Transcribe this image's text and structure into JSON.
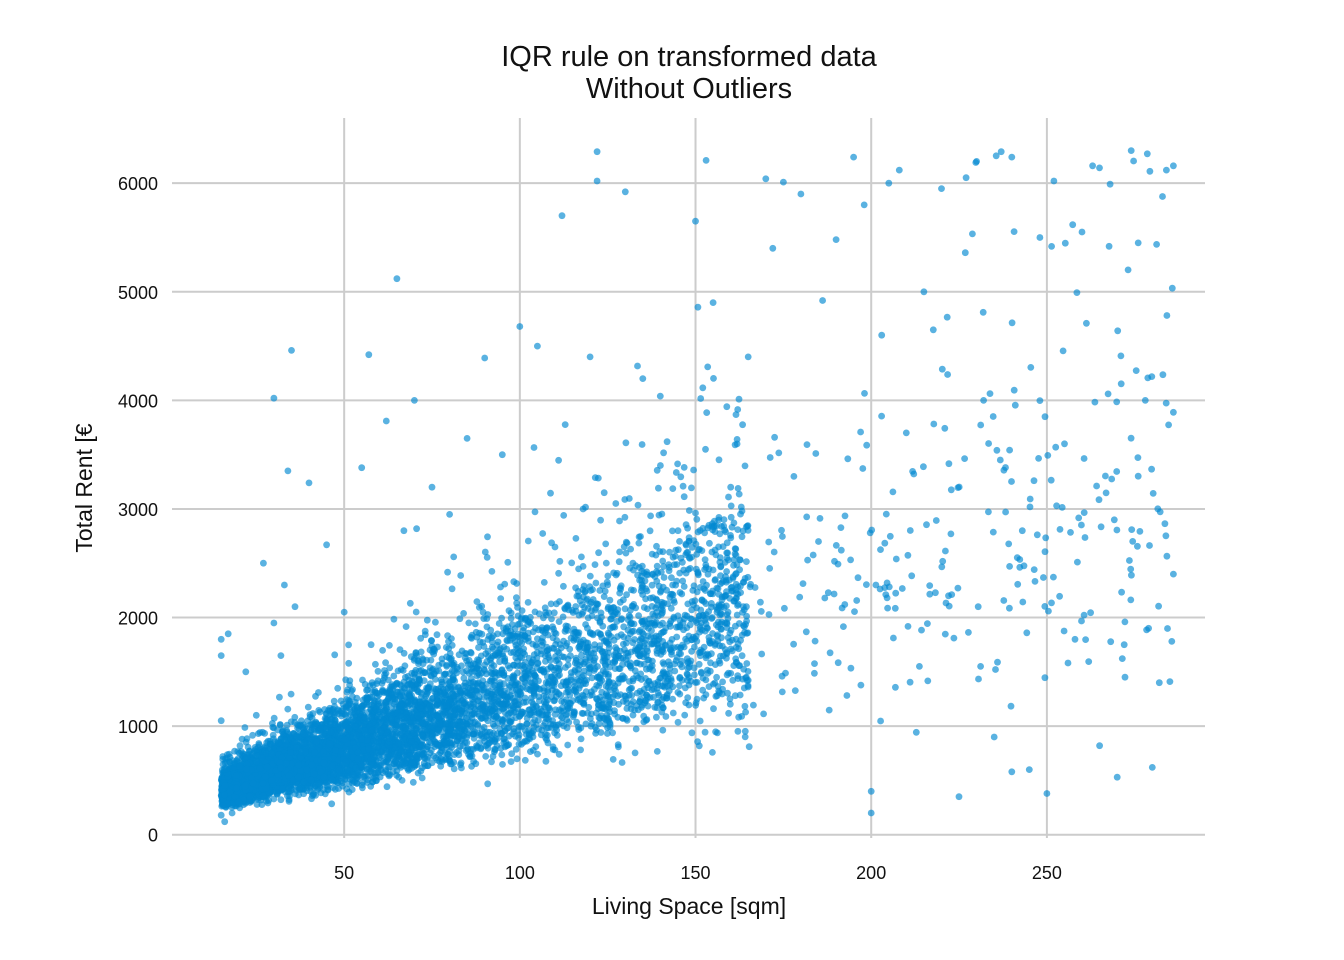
{
  "chart_data": {
    "type": "scatter",
    "title": "IQR rule on transformed data",
    "subtitle": "Without Outliers",
    "xlabel": "Living Space [sqm]",
    "ylabel": "Total Rent [€",
    "xlim": [
      1,
      295
    ],
    "ylim": [
      -30,
      6600
    ],
    "xticks": [
      50,
      100,
      150,
      200,
      250
    ],
    "yticks": [
      0,
      1000,
      2000,
      3000,
      4000,
      5000,
      6000
    ],
    "grid": true,
    "legend": "none",
    "marker_color": "#0288d1",
    "marker_opacity": 0.65,
    "series": [
      {
        "points": [
          [
            15,
            180
          ],
          [
            15,
            1050
          ],
          [
            15,
            1650
          ],
          [
            15,
            1800
          ],
          [
            16,
            120
          ],
          [
            17,
            1850
          ],
          [
            20,
            300
          ],
          [
            22,
            1500
          ],
          [
            25,
            1100
          ],
          [
            27,
            2500
          ],
          [
            30,
            1950
          ],
          [
            30,
            4020
          ],
          [
            32,
            1650
          ],
          [
            33,
            2300
          ],
          [
            34,
            3350
          ],
          [
            35,
            4460
          ],
          [
            36,
            2100
          ],
          [
            40,
            3240
          ],
          [
            45,
            2670
          ],
          [
            50,
            2050
          ],
          [
            55,
            3380
          ],
          [
            57,
            4420
          ],
          [
            62,
            3810
          ],
          [
            65,
            5120
          ],
          [
            67,
            2800
          ],
          [
            70,
            4000
          ],
          [
            75,
            3200
          ],
          [
            80,
            2950
          ],
          [
            85,
            3650
          ],
          [
            90,
            4390
          ],
          [
            95,
            3500
          ],
          [
            100,
            4680
          ],
          [
            105,
            4500
          ],
          [
            110,
            2650
          ],
          [
            112,
            5700
          ],
          [
            118,
            3000
          ],
          [
            120,
            4400
          ],
          [
            122,
            6020
          ],
          [
            122,
            6290
          ],
          [
            124,
            3150
          ],
          [
            130,
            5920
          ],
          [
            135,
            4200
          ],
          [
            140,
            3400
          ],
          [
            145,
            2800
          ],
          [
            150,
            5650
          ],
          [
            153,
            6210
          ],
          [
            155,
            4900
          ],
          [
            160,
            3200
          ],
          [
            165,
            4400
          ],
          [
            170,
            6040
          ],
          [
            172,
            5400
          ],
          [
            175,
            6010
          ],
          [
            178,
            3300
          ],
          [
            180,
            5900
          ],
          [
            185,
            2700
          ],
          [
            190,
            5480
          ],
          [
            195,
            6240
          ],
          [
            198,
            5800
          ],
          [
            200,
            400
          ],
          [
            200,
            200
          ],
          [
            203,
            4600
          ],
          [
            205,
            6000
          ],
          [
            208,
            6120
          ],
          [
            210,
            3700
          ],
          [
            215,
            5000
          ],
          [
            220,
            5950
          ],
          [
            222,
            2200
          ],
          [
            225,
            350
          ],
          [
            227,
            6050
          ],
          [
            230,
            6200
          ],
          [
            232,
            4000
          ],
          [
            235,
            900
          ],
          [
            237,
            6290
          ],
          [
            240,
            6240
          ],
          [
            240,
            580
          ],
          [
            243,
            2800
          ],
          [
            245,
            600
          ],
          [
            248,
            5500
          ],
          [
            250,
            380
          ],
          [
            252,
            6020
          ],
          [
            255,
            3600
          ],
          [
            258,
            1800
          ],
          [
            260,
            5550
          ],
          [
            263,
            6160
          ],
          [
            265,
            820
          ],
          [
            268,
            5990
          ],
          [
            270,
            530
          ],
          [
            272,
            1750
          ],
          [
            274,
            6300
          ],
          [
            276,
            5450
          ],
          [
            278,
            4000
          ],
          [
            280,
            620
          ],
          [
            282,
            1400
          ],
          [
            284,
            6120
          ],
          [
            285,
            1410
          ],
          [
            286,
            6160
          ],
          [
            286,
            3890
          ],
          [
            286,
            2400
          ]
        ]
      }
    ]
  }
}
